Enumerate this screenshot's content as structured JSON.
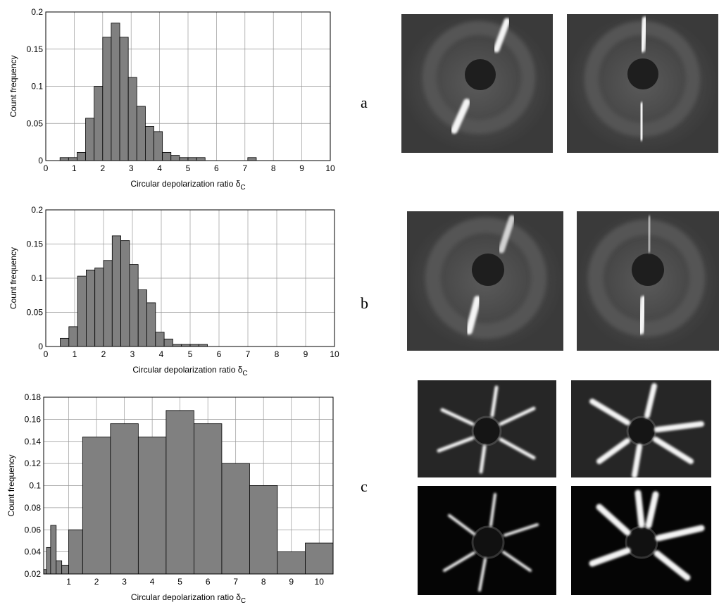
{
  "chart_data": [
    {
      "type": "histogram",
      "xlabel": "Circular depolarization ratio δ",
      "xlabel_subscript": "C",
      "ylabel": "Count frequency",
      "color": "#808080",
      "grid": true,
      "bins": [
        0.5,
        0.8,
        1.1,
        1.4,
        1.7,
        2.0,
        2.3,
        2.6,
        2.9,
        3.2,
        3.5,
        3.8,
        4.1,
        4.4,
        4.7,
        5.0,
        5.3,
        5.6,
        5.9,
        6.2,
        6.5,
        6.8,
        7.1,
        7.4
      ],
      "values": [
        0.004,
        0.004,
        0.011,
        0.057,
        0.1,
        0.166,
        0.185,
        0.166,
        0.112,
        0.073,
        0.046,
        0.039,
        0.011,
        0.007,
        0.004,
        0.004,
        0.004,
        0,
        0,
        0,
        0,
        0,
        0.004
      ],
      "xlim": [
        0,
        10
      ],
      "xticks": [
        0,
        1,
        2,
        3,
        4,
        5,
        6,
        7,
        8,
        9,
        10
      ],
      "ylim": [
        0,
        0.2
      ],
      "yticks": [
        0,
        0.05,
        0.1,
        0.15,
        0.2
      ]
    },
    {
      "type": "histogram",
      "xlabel": "Circular depolarization ratio δ",
      "xlabel_subscript": "C",
      "ylabel": "Count frequency",
      "color": "#808080",
      "grid": true,
      "bins": [
        0.5,
        0.8,
        1.1,
        1.4,
        1.7,
        2.0,
        2.3,
        2.6,
        2.9,
        3.2,
        3.5,
        3.8,
        4.1,
        4.4,
        4.7,
        5.0,
        5.3,
        5.6
      ],
      "values": [
        0.012,
        0.029,
        0.103,
        0.112,
        0.115,
        0.126,
        0.162,
        0.155,
        0.12,
        0.083,
        0.064,
        0.021,
        0.011,
        0.003,
        0.003,
        0.003,
        0.003
      ],
      "xlim": [
        0,
        10
      ],
      "xticks": [
        0,
        1,
        2,
        3,
        4,
        5,
        6,
        7,
        8,
        9,
        10
      ],
      "ylim": [
        0,
        0.2
      ],
      "yticks": [
        0,
        0.05,
        0.1,
        0.15,
        0.2
      ]
    },
    {
      "type": "histogram",
      "xlabel": "Circular depolarization ratio δ",
      "xlabel_subscript": "C",
      "ylabel": "Count frequency",
      "color": "#808080",
      "grid": true,
      "bins": [
        0.1,
        0.2,
        0.35,
        0.55,
        0.75,
        1.0,
        1.5,
        2.5,
        3.5,
        4.5,
        5.5,
        6.5,
        7.5,
        8.5,
        9.5,
        10.5
      ],
      "values": [
        0.024,
        0.044,
        0.064,
        0.032,
        0.028,
        0.06,
        0.144,
        0.156,
        0.144,
        0.168,
        0.156,
        0.12,
        0.1,
        0.04,
        0.048
      ],
      "xlim": [
        0.1,
        10.5
      ],
      "xticks": [
        1,
        2,
        3,
        4,
        5,
        6,
        7,
        8,
        9,
        10
      ],
      "ylim": [
        0.02,
        0.18
      ],
      "yticks": [
        0.02,
        0.04,
        0.06,
        0.08,
        0.1,
        0.12,
        0.14,
        0.16,
        0.18
      ]
    }
  ],
  "panel_labels": [
    "a",
    "b",
    "c"
  ]
}
